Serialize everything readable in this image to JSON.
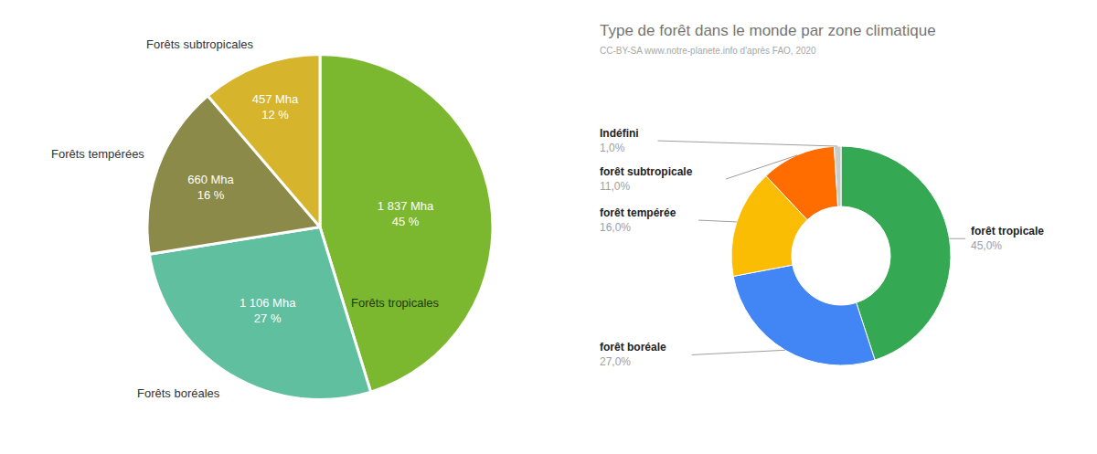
{
  "chart_data": [
    {
      "type": "pie",
      "categories": [
        "Forêts tropicales",
        "Forêts boréales",
        "Forêts tempérées",
        "Forêts subtropicales"
      ],
      "values": [
        1837,
        1106,
        660,
        457
      ],
      "value_labels": [
        "1 837 Mha",
        "1 106 Mha",
        "660 Mha",
        "457 Mha"
      ],
      "percent_labels": [
        "45 %",
        "27 %",
        "16 %",
        "12 %"
      ],
      "colors": [
        "#7cb82f",
        "#5fbf9f",
        "#8c8a48",
        "#d6b52c"
      ],
      "data_labels": true
    },
    {
      "type": "donut",
      "title": "Type de forêt dans le monde par zone climatique",
      "subtitle": "CC-BY-SA www.notre-planete.info d'après FAO, 2020",
      "categories": [
        "forêt tropicale",
        "forêt boréale",
        "forêt tempérée",
        "forêt subtropicale",
        "Indéfini"
      ],
      "values": [
        45,
        27,
        16,
        11,
        1
      ],
      "value_labels": [
        "45,0%",
        "27,0%",
        "16,0%",
        "11,0%",
        "1,0%"
      ],
      "colors": [
        "#34a853",
        "#4285f4",
        "#fbbc04",
        "#ff6d01",
        "#cccccc"
      ],
      "data_labels": true
    }
  ]
}
